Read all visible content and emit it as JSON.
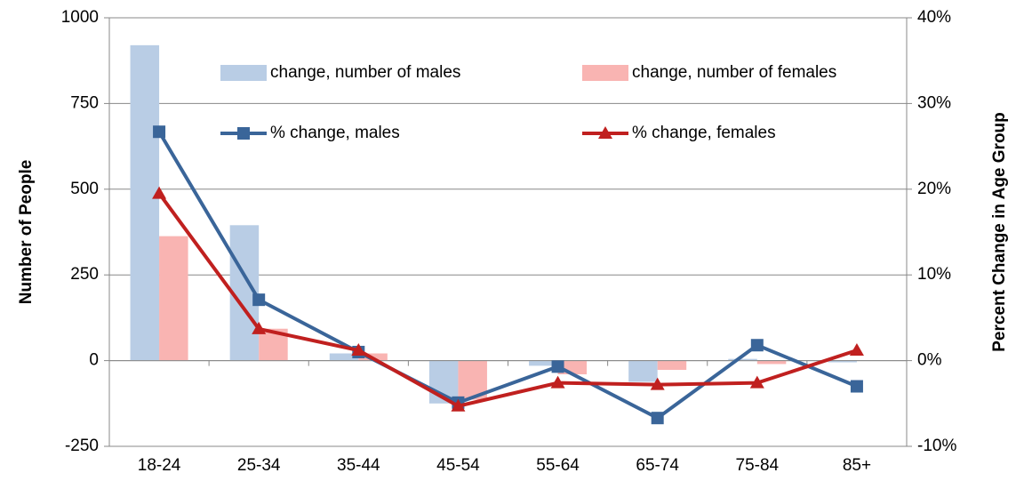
{
  "chart_data": {
    "type": "bar-line",
    "y_label": "Number of People",
    "y2_label": "Percent Change in Age Group",
    "categories": [
      "18-24",
      "25-34",
      "35-44",
      "45-54",
      "55-64",
      "65-74",
      "75-84",
      "85+"
    ],
    "series": [
      {
        "name": "change, number of males",
        "type": "bar",
        "color": "#b9cde5",
        "values": [
          920,
          395,
          21,
          -125,
          -15,
          -62,
          5,
          -5
        ]
      },
      {
        "name": "change, number of females",
        "type": "bar",
        "color": "#f9b4b2",
        "values": [
          363,
          93,
          21,
          -114,
          -40,
          -27,
          -10,
          0
        ]
      },
      {
        "name": "% change, males",
        "type": "line",
        "axis": "y2",
        "marker": "square",
        "color": "#3a6599",
        "values": [
          26.7,
          7.1,
          1.0,
          -4.9,
          -0.7,
          -6.7,
          1.8,
          -3.0
        ]
      },
      {
        "name": "% change, females",
        "type": "line",
        "axis": "y2",
        "marker": "triangle",
        "color": "#c0201f",
        "values": [
          19.5,
          3.7,
          1.2,
          -5.3,
          -2.6,
          -2.8,
          -2.6,
          1.2
        ]
      }
    ],
    "ylim": [
      -250,
      1000
    ],
    "yticks": [
      -250,
      0,
      250,
      500,
      750,
      1000
    ],
    "y2lim": [
      -10,
      40
    ],
    "y2ticks": [
      {
        "value": -10,
        "label": "-10%"
      },
      {
        "value": 0,
        "label": "0%"
      },
      {
        "value": 10,
        "label": "10%"
      },
      {
        "value": 20,
        "label": "20%"
      },
      {
        "value": 30,
        "label": "30%"
      },
      {
        "value": 40,
        "label": "40%"
      }
    ],
    "grid": true
  }
}
